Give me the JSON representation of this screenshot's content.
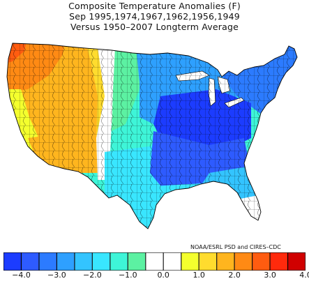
{
  "title": {
    "line1": "Composite Temperature Anomalies (F)",
    "line2": "Sep  1995,1974,1967,1962,1956,1949",
    "line3": "Versus 1950–2007 Longterm Average"
  },
  "credit": "NOAA/ESRL PSD and CIRES–CDC",
  "legend": {
    "colors": [
      "#1c3cff",
      "#2e5bff",
      "#2c7bff",
      "#2ea0ff",
      "#33c4ff",
      "#39e6ff",
      "#3ef5d8",
      "#5cf1a2",
      "#ffffff",
      "#ffffff",
      "#f4ff2e",
      "#ffdc2e",
      "#ffb51e",
      "#ff8a14",
      "#ff5c10",
      "#ff2a0c",
      "#d00000"
    ],
    "ticks": [
      "−4.0",
      "−3.0",
      "−2.0",
      "−1.0",
      "0.0",
      "1.0",
      "2.0",
      "3.0",
      "4.0"
    ]
  },
  "map_regions": [
    {
      "region": "Pacific Northwest coast",
      "anomaly": 3.0,
      "color": "#ff8a14"
    },
    {
      "region": "Oregon / Washington interior",
      "anomaly": 2.5,
      "color": "#ffb51e"
    },
    {
      "region": "California coast",
      "anomaly": 1.5,
      "color": "#f4ff2e"
    },
    {
      "region": "Great Basin",
      "anomaly": 2.5,
      "color": "#ffb51e"
    },
    {
      "region": "Northern Rockies",
      "anomaly": 1.5,
      "color": "#ffdc2e"
    },
    {
      "region": "Northern Plains",
      "anomaly": -0.5,
      "color": "#5cf1a2"
    },
    {
      "region": "Southern Plains",
      "anomaly": -1.0,
      "color": "#3ef5d8"
    },
    {
      "region": "Upper Midwest",
      "anomaly": -2.5,
      "color": "#2ea0ff"
    },
    {
      "region": "Ohio Valley",
      "anomaly": -4.0,
      "color": "#1c3cff"
    },
    {
      "region": "Southeast",
      "anomaly": -2.0,
      "color": "#33c4ff"
    },
    {
      "region": "Northeast",
      "anomaly": -3.0,
      "color": "#2c7bff"
    },
    {
      "region": "Florida",
      "anomaly": 0.0,
      "color": "#ffffff"
    }
  ]
}
